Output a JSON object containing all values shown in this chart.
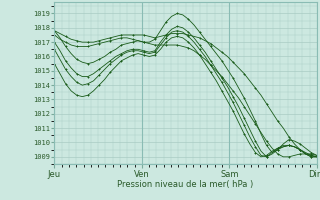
{
  "title": "",
  "xlabel": "Pression niveau de la mer( hPa )",
  "ylim": [
    1008.5,
    1019.8
  ],
  "yticks": [
    1009,
    1010,
    1011,
    1012,
    1013,
    1014,
    1015,
    1016,
    1017,
    1018,
    1019
  ],
  "xtick_labels": [
    "Jeu",
    "Ven",
    "Sam",
    "Dim"
  ],
  "xtick_pos": [
    0,
    96,
    192,
    288
  ],
  "x_total": 288,
  "bg_color": "#cce8e0",
  "grid_color": "#aaccc4",
  "line_color": "#1a5c1a",
  "marker": "+",
  "series": [
    [
      1017.8,
      1017.6,
      1017.4,
      1017.2,
      1017.1,
      1017.0,
      1017.0,
      1017.0,
      1017.1,
      1017.2,
      1017.3,
      1017.4,
      1017.5,
      1017.5,
      1017.5,
      1017.5,
      1017.5,
      1017.4,
      1017.3,
      1017.4,
      1017.5,
      1017.6,
      1017.6,
      1017.6,
      1017.5,
      1017.4,
      1017.3,
      1017.1,
      1016.9,
      1016.6,
      1016.3,
      1016.0,
      1015.6,
      1015.2,
      1014.8,
      1014.3,
      1013.8,
      1013.3,
      1012.7,
      1012.1,
      1011.5,
      1011.0,
      1010.4,
      1009.9,
      1009.5,
      1009.2,
      1009.1,
      1009.0
    ],
    [
      1017.5,
      1017.2,
      1017.0,
      1016.8,
      1016.7,
      1016.7,
      1016.7,
      1016.8,
      1016.9,
      1017.0,
      1017.1,
      1017.2,
      1017.3,
      1017.3,
      1017.2,
      1017.1,
      1017.0,
      1016.9,
      1016.8,
      1016.8,
      1016.8,
      1016.8,
      1016.8,
      1016.7,
      1016.6,
      1016.4,
      1016.1,
      1015.8,
      1015.4,
      1015.0,
      1014.6,
      1014.1,
      1013.6,
      1013.1,
      1012.5,
      1011.9,
      1011.3,
      1010.7,
      1010.1,
      1009.6,
      1009.2,
      1009.0,
      1009.0,
      1009.1,
      1009.2,
      1009.2,
      1009.2,
      1009.1
    ],
    [
      1017.8,
      1017.3,
      1016.7,
      1016.2,
      1015.8,
      1015.6,
      1015.5,
      1015.6,
      1015.8,
      1016.0,
      1016.3,
      1016.5,
      1016.8,
      1016.9,
      1017.0,
      1017.1,
      1017.0,
      1017.0,
      1017.2,
      1017.8,
      1018.4,
      1018.8,
      1019.0,
      1018.9,
      1018.6,
      1018.2,
      1017.7,
      1017.2,
      1016.7,
      1016.2,
      1015.7,
      1015.1,
      1014.5,
      1013.8,
      1013.1,
      1012.3,
      1011.5,
      1010.6,
      1009.8,
      1009.3,
      1009.5,
      1009.9,
      1010.2,
      1010.1,
      1009.9,
      1009.6,
      1009.3,
      1009.1
    ],
    [
      1017.0,
      1016.4,
      1015.7,
      1015.2,
      1014.8,
      1014.6,
      1014.6,
      1014.8,
      1015.1,
      1015.4,
      1015.7,
      1016.0,
      1016.2,
      1016.4,
      1016.5,
      1016.5,
      1016.4,
      1016.3,
      1016.4,
      1017.0,
      1017.5,
      1017.9,
      1018.1,
      1018.0,
      1017.7,
      1017.3,
      1016.8,
      1016.3,
      1015.7,
      1015.1,
      1014.5,
      1013.9,
      1013.2,
      1012.5,
      1011.7,
      1010.9,
      1010.1,
      1009.4,
      1009.0,
      1009.2,
      1009.5,
      1009.7,
      1009.8,
      1009.7,
      1009.5,
      1009.3,
      1009.1,
      1009.0
    ],
    [
      1016.5,
      1015.8,
      1015.1,
      1014.6,
      1014.2,
      1014.0,
      1014.1,
      1014.3,
      1014.7,
      1015.1,
      1015.5,
      1015.8,
      1016.1,
      1016.3,
      1016.4,
      1016.4,
      1016.3,
      1016.2,
      1016.3,
      1016.8,
      1017.3,
      1017.7,
      1017.8,
      1017.7,
      1017.4,
      1017.0,
      1016.5,
      1016.0,
      1015.4,
      1014.8,
      1014.2,
      1013.5,
      1012.8,
      1012.0,
      1011.2,
      1010.4,
      1009.7,
      1009.1,
      1009.0,
      1009.3,
      1009.6,
      1009.7,
      1009.8,
      1009.7,
      1009.5,
      1009.2,
      1009.0,
      1009.0
    ],
    [
      1015.5,
      1014.8,
      1014.1,
      1013.6,
      1013.3,
      1013.2,
      1013.3,
      1013.6,
      1014.0,
      1014.4,
      1014.9,
      1015.3,
      1015.7,
      1015.9,
      1016.1,
      1016.2,
      1016.1,
      1016.0,
      1016.1,
      1016.5,
      1017.0,
      1017.3,
      1017.4,
      1017.3,
      1017.0,
      1016.6,
      1016.1,
      1015.5,
      1014.9,
      1014.3,
      1013.6,
      1012.9,
      1012.2,
      1011.4,
      1010.6,
      1009.9,
      1009.3,
      1009.0,
      1009.1,
      1009.4,
      1009.6,
      1009.8,
      1009.8,
      1009.7,
      1009.5,
      1009.2,
      1009.0,
      1009.0
    ]
  ]
}
